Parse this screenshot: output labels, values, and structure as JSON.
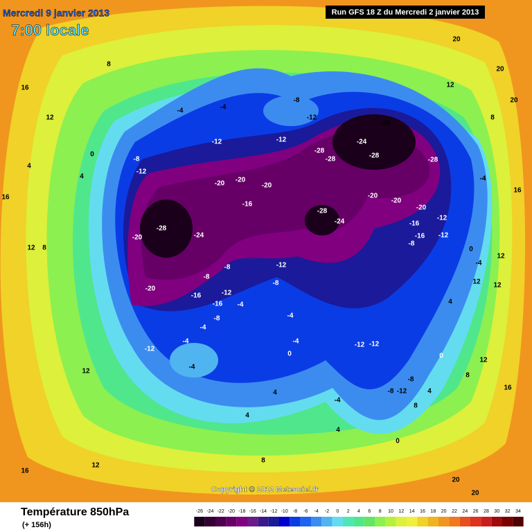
{
  "header": {
    "date": "Mercredi 9 janvier 2013",
    "time": "7:00 locale",
    "run": "Run GFS 18 Z du Mercredi 2 janvier 2013"
  },
  "copyright": "Copyright © 2012 Meteociel.fr",
  "footer": {
    "title": "Température 850hPa",
    "lead": "(+ 156h)"
  },
  "legend": {
    "ticks": [
      -26,
      -24,
      -22,
      -20,
      -18,
      -16,
      -14,
      -12,
      -10,
      -8,
      -6,
      -4,
      -2,
      0,
      2,
      4,
      6,
      8,
      10,
      12,
      14,
      16,
      18,
      20,
      22,
      24,
      26,
      28,
      30,
      32,
      34
    ],
    "colors": [
      "#1a001a",
      "#330033",
      "#4d004d",
      "#660066",
      "#800080",
      "#6a1a8a",
      "#3a1a8a",
      "#1a1a9a",
      "#0000cc",
      "#0a3ce6",
      "#1e64f0",
      "#3c8cf0",
      "#50b4f0",
      "#64dcf0",
      "#50e6b4",
      "#50e68c",
      "#64e664",
      "#8cf050",
      "#b4f03c",
      "#dcf03c",
      "#f0f03c",
      "#f0d228",
      "#f0b41e",
      "#f0961e",
      "#f0781e",
      "#e6501e",
      "#dc321e",
      "#c81e1e",
      "#a00a0a",
      "#780000",
      "#500000"
    ]
  },
  "contour_labels": [
    "16",
    "12",
    "8",
    "4",
    "16",
    "12",
    "8",
    "4",
    "0",
    "-4",
    "-4",
    "-8",
    "-12",
    "-12",
    "-12",
    "-8",
    "-12",
    "-20",
    "-20",
    "-20",
    "-16",
    "-28",
    "-24",
    "-20",
    "-20",
    "-28",
    "-24",
    "-28",
    "-28",
    "-28",
    "-28",
    "-20",
    "-20",
    "-28",
    "-24",
    "-20",
    "-16",
    "-12",
    "-8",
    "-12",
    "-16",
    "-12",
    "-8",
    "-8",
    "-8",
    "-12",
    "-16",
    "-16",
    "-4",
    "-8",
    "-4",
    "-4",
    "-12",
    "-4",
    "-4",
    "-4",
    "0",
    "-12",
    "-12",
    "-8",
    "-8",
    "-12",
    "-4",
    "0",
    "4",
    "4",
    "4",
    "8",
    "12",
    "16",
    "12",
    "20",
    "20",
    "0",
    "-4",
    "4",
    "8",
    "12",
    "16",
    "20",
    "20",
    "20",
    "16",
    "12",
    "12",
    "12",
    "0",
    "4",
    "8",
    "-4",
    "12",
    "8"
  ]
}
